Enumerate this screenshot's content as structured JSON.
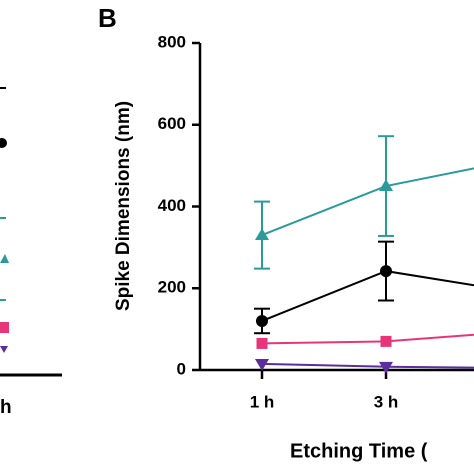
{
  "fragment_label": "h",
  "chart_data": {
    "type": "line",
    "panel_label": "B",
    "x_label": "Etching Time (",
    "y_label": "Spike Dimensions (nm)",
    "categories": [
      "1 h",
      "3 h",
      null
    ],
    "ylim": [
      0,
      800
    ],
    "yticks": [
      0,
      200,
      400,
      600,
      800
    ],
    "series": [
      {
        "color": "#2a9a9a",
        "marker": "triangle-up",
        "values": [
          330,
          450,
          511
        ],
        "errors": [
          82,
          122,
          null
        ]
      },
      {
        "color": "#000000",
        "marker": "circle",
        "values": [
          120,
          242,
          193
        ],
        "errors": [
          30,
          72,
          null
        ]
      },
      {
        "color": "#e8357a",
        "marker": "square",
        "values": [
          65,
          70,
          93
        ],
        "errors": [
          null,
          null,
          null
        ]
      },
      {
        "color": "#5b2d9e",
        "marker": "triangle-down",
        "values": [
          15,
          8,
          5
        ],
        "errors": [
          null,
          null,
          null
        ]
      }
    ]
  }
}
